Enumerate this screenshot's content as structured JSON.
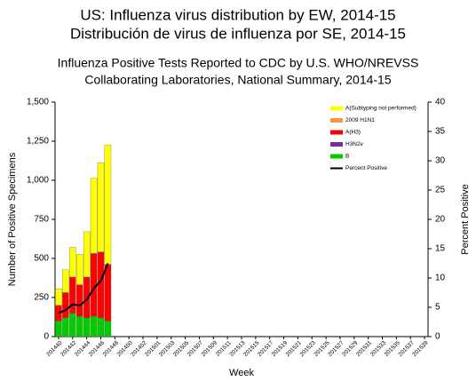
{
  "chart_data": {
    "type": "bar",
    "stacked": true,
    "headings": [
      "US: Influenza virus distribution by EW, 2014-15",
      "Distribución de virus de influenza por SE, 2014-15"
    ],
    "title_lines": [
      "Influenza Positive Tests Reported to CDC by U.S. WHO/NREVSS",
      "Collaborating Laboratories, National Summary, 2014-15"
    ],
    "x_label": "Week",
    "y_label": "Number of Positive Specimens",
    "y2_label": "Percent Positive",
    "categories": [
      "201440",
      null,
      "201442",
      null,
      "201444",
      null,
      "201446",
      null,
      "201448",
      null,
      "201450",
      null,
      "201452",
      null,
      "201501",
      null,
      "201503",
      null,
      "201505",
      null,
      "201507",
      null,
      "201509",
      null,
      "201511",
      null,
      "201513",
      null,
      "201515",
      null,
      "201517",
      null,
      "201519",
      null,
      "201521",
      null,
      "201523",
      null,
      "201525",
      null,
      "201527",
      null,
      "201529",
      null,
      "201531",
      null,
      "201533",
      null,
      "201535",
      null,
      "201537",
      null,
      "201539"
    ],
    "series": [
      {
        "name": "A(Subtyping not performed)",
        "color": "#ffff00",
        "values": [
          105,
          145,
          190,
          195,
          290,
          480,
          570,
          765,
          null,
          null,
          null,
          null,
          null,
          null,
          null,
          null,
          null,
          null,
          null,
          null,
          null,
          null,
          null,
          null,
          null,
          null,
          null,
          null,
          null,
          null,
          null,
          null,
          null,
          null,
          null,
          null,
          null,
          null,
          null,
          null,
          null,
          null,
          null,
          null,
          null,
          null,
          null,
          null,
          null,
          null,
          null,
          null,
          null
        ]
      },
      {
        "name": "2009 H1N1",
        "color": "#f79646",
        "values": [
          0,
          2,
          1,
          2,
          1,
          3,
          2,
          2,
          null,
          null,
          null,
          null,
          null,
          null,
          null,
          null,
          null,
          null,
          null,
          null,
          null,
          null,
          null,
          null,
          null,
          null,
          null,
          null,
          null,
          null,
          null,
          null,
          null,
          null,
          null,
          null,
          null,
          null,
          null,
          null,
          null,
          null,
          null,
          null,
          null,
          null,
          null,
          null,
          null,
          null,
          null,
          null,
          null
        ]
      },
      {
        "name": "A(H3)",
        "color": "#ff0000",
        "values": [
          100,
          160,
          230,
          200,
          260,
          400,
          420,
          360,
          null,
          null,
          null,
          null,
          null,
          null,
          null,
          null,
          null,
          null,
          null,
          null,
          null,
          null,
          null,
          null,
          null,
          null,
          null,
          null,
          null,
          null,
          null,
          null,
          null,
          null,
          null,
          null,
          null,
          null,
          null,
          null,
          null,
          null,
          null,
          null,
          null,
          null,
          null,
          null,
          null,
          null,
          null,
          null,
          null
        ]
      },
      {
        "name": "H3N2v",
        "color": "#7030a0",
        "values": [
          0,
          0,
          0,
          0,
          0,
          0,
          0,
          0,
          null,
          null,
          null,
          null,
          null,
          null,
          null,
          null,
          null,
          null,
          null,
          null,
          null,
          null,
          null,
          null,
          null,
          null,
          null,
          null,
          null,
          null,
          null,
          null,
          null,
          null,
          null,
          null,
          null,
          null,
          null,
          null,
          null,
          null,
          null,
          null,
          null,
          null,
          null,
          null,
          null,
          null,
          null,
          null,
          null
        ]
      },
      {
        "name": "B",
        "color": "#00cc00",
        "values": [
          100,
          120,
          150,
          130,
          120,
          130,
          120,
          100,
          null,
          null,
          null,
          null,
          null,
          null,
          null,
          null,
          null,
          null,
          null,
          null,
          null,
          null,
          null,
          null,
          null,
          null,
          null,
          null,
          null,
          null,
          null,
          null,
          null,
          null,
          null,
          null,
          null,
          null,
          null,
          null,
          null,
          null,
          null,
          null,
          null,
          null,
          null,
          null,
          null,
          null,
          null,
          null,
          null
        ]
      },
      {
        "name": "Percent Positive",
        "color": "#000000",
        "type": "line",
        "axis": "y2",
        "values": [
          4,
          4.5,
          5.5,
          5.3,
          6.3,
          8.2,
          9.5,
          12.5,
          null,
          null,
          null,
          null,
          null,
          null,
          null,
          null,
          null,
          null,
          null,
          null,
          null,
          null,
          null,
          null,
          null,
          null,
          null,
          null,
          null,
          null,
          null,
          null,
          null,
          null,
          null,
          null,
          null,
          null,
          null,
          null,
          null,
          null,
          null,
          null,
          null,
          null,
          null,
          null,
          null,
          null,
          null,
          null,
          null
        ]
      }
    ],
    "ylim": [
      0,
      1500
    ],
    "yticks": [
      0,
      250,
      500,
      750,
      {
        "value": 1000,
        "label": "1,000"
      },
      {
        "value": 1250,
        "label": "1,250"
      },
      {
        "value": 1500,
        "label": "1,500"
      }
    ],
    "y2lim": [
      0,
      40
    ],
    "y2ticks": [
      0,
      5,
      10,
      15,
      20,
      25,
      30,
      35,
      40
    ]
  }
}
